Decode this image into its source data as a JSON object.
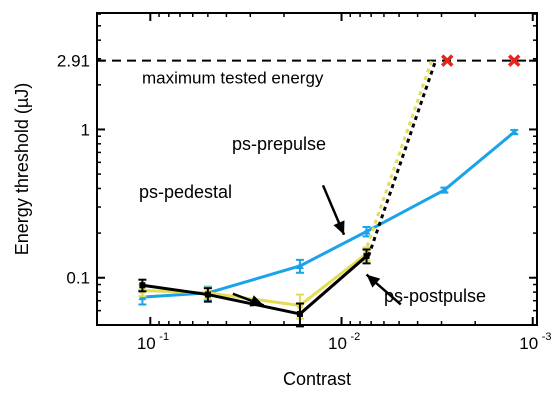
{
  "chart_data": {
    "type": "line",
    "xlabel": "Contrast",
    "ylabel": "Energy threshold (µJ)",
    "xscale": "log",
    "yscale": "log",
    "x_reversed": true,
    "xlim": [
      0.19,
      0.00095
    ],
    "ylim": [
      0.048,
      6.1
    ],
    "x_ticks": [
      {
        "value": 0.1,
        "base": "10",
        "exp": "-1"
      },
      {
        "value": 0.01,
        "base": "10",
        "exp": "-2"
      },
      {
        "value": 0.001,
        "base": "10",
        "exp": "-3"
      }
    ],
    "y_ticks": [
      {
        "value": 0.1,
        "label": "0.1"
      },
      {
        "value": 1,
        "label": "1"
      },
      {
        "value": 2.91,
        "label": "2.91"
      }
    ],
    "reference_line": {
      "y": 2.91,
      "label": "maximum tested energy"
    },
    "series": [
      {
        "name": "ps-prepulse",
        "color": "#1aa3e8",
        "marker": "triangle",
        "points": [
          {
            "x": 0.11,
            "y": 0.074,
            "err": 0.008
          },
          {
            "x": 0.05,
            "y": 0.079,
            "err": 0.008
          },
          {
            "x": 0.0165,
            "y": 0.12,
            "err": 0.012
          },
          {
            "x": 0.0074,
            "y": 0.205,
            "err": 0.015
          },
          {
            "x": 0.0029,
            "y": 0.39,
            "err": 0.015
          },
          {
            "x": 0.00125,
            "y": 0.96,
            "err": 0.03
          }
        ]
      },
      {
        "name": "ps-pedestal",
        "color": "#e3dc55",
        "marker": "square",
        "points": [
          {
            "x": 0.11,
            "y": 0.082,
            "err": 0.007
          },
          {
            "x": 0.05,
            "y": 0.079,
            "err": 0.007
          },
          {
            "x": 0.0165,
            "y": 0.065,
            "err": 0.012
          },
          {
            "x": 0.0074,
            "y": 0.145,
            "err": 0.015
          }
        ],
        "dotted_to_limit": {
          "x": 0.0033,
          "y": 2.91
        }
      },
      {
        "name": "ps-postpulse",
        "color": "#000000",
        "marker": "square",
        "points": [
          {
            "x": 0.11,
            "y": 0.089,
            "err": 0.008
          },
          {
            "x": 0.05,
            "y": 0.077,
            "err": 0.008
          },
          {
            "x": 0.0165,
            "y": 0.057,
            "err": 0.01
          },
          {
            "x": 0.0074,
            "y": 0.14,
            "err": 0.015
          }
        ],
        "dotted_to_limit": {
          "x": 0.0033,
          "y": 2.91
        }
      }
    ],
    "limit_markers": {
      "color": "#e8231a",
      "marker": "x",
      "points": [
        {
          "x": 0.0028,
          "y": 2.91
        },
        {
          "x": 0.00125,
          "y": 2.91
        }
      ]
    },
    "annotations": [
      {
        "text": "ps-prepulse",
        "tail_x": 0.0125,
        "tail_y": 0.42,
        "head_x": 0.0097,
        "head_y": 0.195
      },
      {
        "text": "ps-pedestal",
        "tail_x": 0.037,
        "tail_y": 0.078,
        "head_x": 0.0255,
        "head_y": 0.065
      },
      {
        "text": "ps-postpulse",
        "tail_x": 0.0049,
        "tail_y": 0.066,
        "head_x": 0.0074,
        "head_y": 0.105
      }
    ]
  }
}
